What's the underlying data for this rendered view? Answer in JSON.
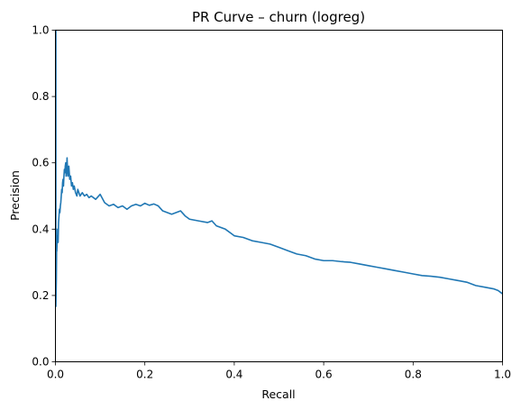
{
  "chart_data": {
    "type": "line",
    "title": "PR Curve – churn (logreg)",
    "xlabel": "Recall",
    "ylabel": "Precision",
    "xlim": [
      0,
      1
    ],
    "ylim": [
      0,
      1
    ],
    "grid": false,
    "line_color": "#1f77b4",
    "x_ticks": [
      "0.0",
      "0.2",
      "0.4",
      "0.6",
      "0.8",
      "1.0"
    ],
    "y_ticks": [
      "0.0",
      "0.2",
      "0.4",
      "0.6",
      "0.8",
      "1.0"
    ],
    "series": [
      {
        "x": [
          0.0,
          0.001,
          0.001,
          0.002,
          0.003,
          0.003,
          0.004,
          0.005,
          0.006,
          0.007,
          0.008,
          0.009,
          0.01,
          0.011,
          0.012,
          0.013,
          0.014,
          0.015,
          0.016,
          0.017,
          0.018,
          0.019,
          0.02,
          0.021,
          0.022,
          0.023,
          0.024,
          0.025,
          0.026,
          0.027,
          0.028,
          0.03,
          0.032,
          0.034,
          0.036,
          0.038,
          0.04,
          0.042,
          0.045,
          0.048,
          0.05,
          0.055,
          0.06,
          0.065,
          0.07,
          0.075,
          0.08,
          0.09,
          0.1,
          0.11,
          0.12,
          0.13,
          0.14,
          0.15,
          0.16,
          0.17,
          0.18,
          0.19,
          0.2,
          0.21,
          0.22,
          0.23,
          0.24,
          0.25,
          0.26,
          0.27,
          0.28,
          0.29,
          0.3,
          0.32,
          0.34,
          0.35,
          0.36,
          0.38,
          0.4,
          0.42,
          0.44,
          0.46,
          0.48,
          0.5,
          0.52,
          0.54,
          0.56,
          0.58,
          0.6,
          0.62,
          0.64,
          0.66,
          0.68,
          0.7,
          0.72,
          0.74,
          0.76,
          0.78,
          0.8,
          0.82,
          0.84,
          0.86,
          0.88,
          0.9,
          0.92,
          0.94,
          0.96,
          0.98,
          0.99,
          1.0
        ],
        "y": [
          1.0,
          1.0,
          0.167,
          0.25,
          0.4,
          0.333,
          0.37,
          0.38,
          0.36,
          0.42,
          0.44,
          0.46,
          0.45,
          0.47,
          0.48,
          0.5,
          0.52,
          0.51,
          0.54,
          0.55,
          0.53,
          0.56,
          0.58,
          0.57,
          0.59,
          0.6,
          0.56,
          0.58,
          0.615,
          0.58,
          0.56,
          0.59,
          0.55,
          0.56,
          0.53,
          0.54,
          0.52,
          0.53,
          0.51,
          0.5,
          0.52,
          0.5,
          0.51,
          0.5,
          0.505,
          0.495,
          0.5,
          0.49,
          0.505,
          0.48,
          0.47,
          0.475,
          0.465,
          0.47,
          0.46,
          0.47,
          0.475,
          0.47,
          0.478,
          0.472,
          0.476,
          0.47,
          0.455,
          0.45,
          0.445,
          0.45,
          0.455,
          0.44,
          0.43,
          0.425,
          0.42,
          0.425,
          0.41,
          0.4,
          0.38,
          0.375,
          0.365,
          0.36,
          0.355,
          0.345,
          0.335,
          0.325,
          0.32,
          0.31,
          0.305,
          0.305,
          0.302,
          0.3,
          0.295,
          0.29,
          0.285,
          0.28,
          0.275,
          0.27,
          0.265,
          0.26,
          0.258,
          0.255,
          0.25,
          0.245,
          0.24,
          0.23,
          0.225,
          0.22,
          0.215,
          0.205
        ]
      }
    ]
  }
}
